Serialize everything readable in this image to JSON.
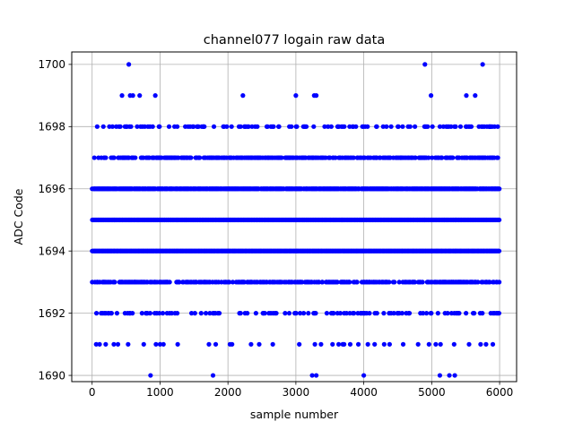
{
  "chart_data": {
    "type": "scatter",
    "title": "channel077 logain raw data",
    "xlabel": "sample number",
    "ylabel": "ADC Code",
    "xlim": [
      -300,
      6250
    ],
    "ylim": [
      1689.8,
      1700.4
    ],
    "xticks": [
      0,
      1000,
      2000,
      3000,
      4000,
      5000,
      6000
    ],
    "xtick_labels": [
      "0",
      "1000",
      "2000",
      "3000",
      "4000",
      "5000",
      "6000"
    ],
    "yticks": [
      1690,
      1692,
      1694,
      1696,
      1698,
      1700
    ],
    "ytick_labels": [
      "1690",
      "1692",
      "1694",
      "1696",
      "1698",
      "1700"
    ],
    "grid": true,
    "marker_color": "#0000ff",
    "n_samples": 6000,
    "dense_levels": [
      1692,
      1693,
      1694,
      1695,
      1696,
      1697,
      1698
    ],
    "dense_density": [
      0.22,
      0.5,
      1.0,
      1.0,
      0.9,
      0.5,
      0.18
    ],
    "level_1700_x": [
      540,
      4900,
      5750
    ],
    "level_1699_x": [
      440,
      560,
      600,
      700,
      930,
      2220,
      3000,
      3270,
      3300,
      4990,
      5510,
      5640
    ],
    "level_1691_x": [
      60,
      110,
      200,
      320,
      380,
      530,
      760,
      940,
      1000,
      1050,
      1260,
      1720,
      1820,
      2030,
      2060,
      2340,
      2460,
      2660,
      3050,
      3280,
      3370,
      3540,
      3630,
      3690,
      3710,
      3800,
      3920,
      4060,
      4160,
      4300,
      4380,
      4580,
      4800,
      4960,
      5060,
      5130,
      5330,
      5550,
      5720,
      5800,
      5900
    ],
    "level_1690_x": [
      860,
      1780,
      3240,
      3300,
      4000,
      5120,
      5260,
      5340
    ]
  }
}
